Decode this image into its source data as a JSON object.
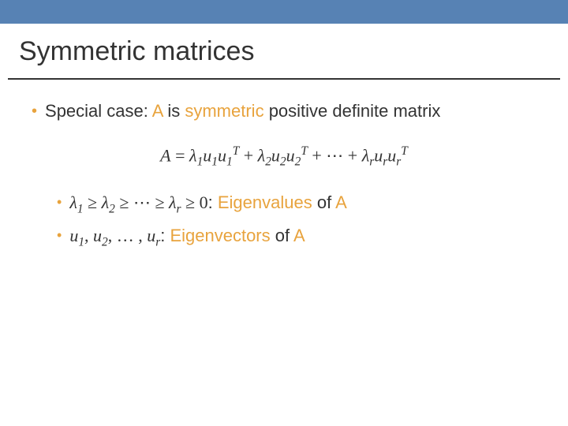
{
  "colors": {
    "topBar": "#5782b4",
    "titleText": "#333333",
    "underline": "#333333",
    "bodyText": "#333333",
    "accent": "#e8a33d",
    "background": "#ffffff"
  },
  "title": "Symmetric matrices",
  "mainBullet": {
    "prefix": "Special case: ",
    "A": "A",
    "mid": " is ",
    "symmetric": "symmetric",
    "suffix": " positive definite matrix"
  },
  "formula": {
    "lhs": "A",
    "eq": " = ",
    "t1_lambda": "λ",
    "t1_li": "1",
    "t1_u": "u",
    "t1_ui": "1",
    "t1_uT": "u",
    "t1_uTi": "1",
    "sup_T": "T",
    "plus": " + ",
    "t2_li": "2",
    "dots": " ⋯ ",
    "tr_i": "r"
  },
  "sub1": {
    "math_prefix": "λ",
    "i1": "1",
    "ge": " ≥ ",
    "i2": "2",
    "dots": " ⋯ ",
    "ir": "r",
    "ge0": " ≥ 0",
    "colon": ": ",
    "label": "Eigenvalues",
    "of": " of ",
    "A": "A"
  },
  "sub2": {
    "u": "u",
    "i1": "1",
    "comma": ", ",
    "i2": "2",
    "dots": ", … , ",
    "ir": "r",
    "colon": ": ",
    "label": "Eigenvectors",
    "of": " of ",
    "A": "A"
  }
}
